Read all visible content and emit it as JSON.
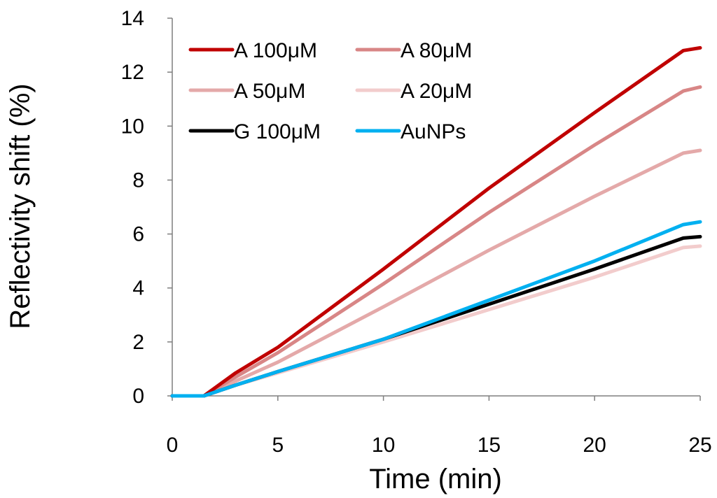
{
  "chart_data": {
    "type": "line",
    "title": "",
    "xlabel": "Time (min)",
    "ylabel": "Reflectivity shift (%)",
    "xlim": [
      0,
      25
    ],
    "ylim": [
      0,
      14
    ],
    "xticks": [
      0,
      5,
      10,
      15,
      20,
      25
    ],
    "yticks": [
      0,
      2,
      4,
      6,
      8,
      10,
      12,
      14
    ],
    "grid": false,
    "legend_position": "top-left",
    "x": [
      0,
      1.5,
      3,
      5,
      10,
      15,
      20,
      24.2,
      25
    ],
    "series": [
      {
        "name": "A 100μM",
        "color": "#c00000",
        "values": [
          0,
          0,
          0.85,
          1.8,
          4.7,
          7.7,
          10.5,
          12.8,
          12.9
        ]
      },
      {
        "name": "A 80μM",
        "color": "#d88686",
        "values": [
          0,
          0,
          0.7,
          1.6,
          4.15,
          6.8,
          9.3,
          11.3,
          11.45
        ]
      },
      {
        "name": "A 50μM",
        "color": "#e4a9a9",
        "values": [
          0,
          0,
          0.55,
          1.25,
          3.3,
          5.4,
          7.4,
          9.0,
          9.1
        ]
      },
      {
        "name": "A 20μM",
        "color": "#f2cccc",
        "values": [
          0,
          0,
          0.4,
          0.85,
          2.0,
          3.2,
          4.4,
          5.5,
          5.55
        ]
      },
      {
        "name": "G 100μM",
        "color": "#000000",
        "values": [
          0,
          0,
          0.4,
          0.9,
          2.1,
          3.4,
          4.7,
          5.85,
          5.9
        ]
      },
      {
        "name": "AuNPs",
        "color": "#00b0f0",
        "values": [
          0,
          0,
          0.4,
          0.9,
          2.1,
          3.55,
          5.0,
          6.35,
          6.45
        ]
      }
    ]
  }
}
